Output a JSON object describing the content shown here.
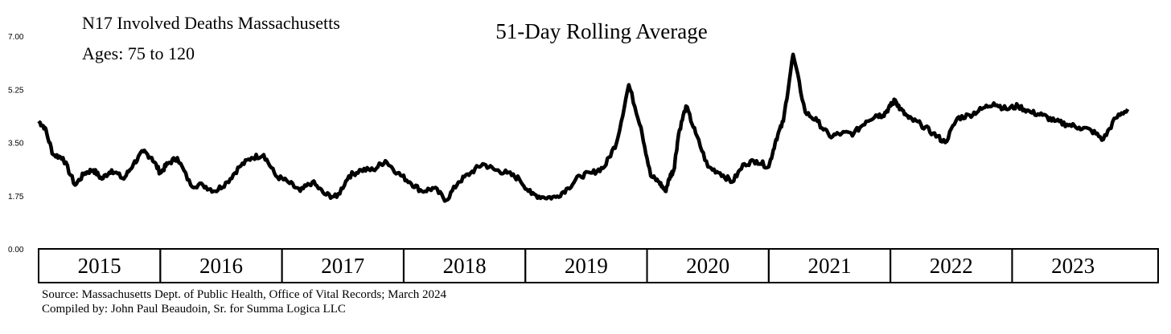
{
  "chart_data": {
    "type": "line",
    "title_lines": [
      "N17 Involved Deaths Massachusetts",
      "Ages:  75 to 120"
    ],
    "subtitle": "51-Day Rolling Average",
    "ylim": [
      0,
      7
    ],
    "yticks": [
      "0.00",
      "1.75",
      "3.50",
      "5.25",
      "7.00"
    ],
    "year_labels": [
      "2015",
      "2016",
      "2017",
      "2018",
      "2019",
      "2020",
      "2021",
      "2022",
      "2023"
    ],
    "grid": false,
    "series": [
      {
        "x": [
          2015.0,
          2015.05,
          2015.12,
          2015.2,
          2015.3,
          2015.38,
          2015.45,
          2015.52,
          2015.6,
          2015.7,
          2015.78,
          2015.86,
          2015.93,
          2016.0,
          2016.06,
          2016.14,
          2016.25,
          2016.35,
          2016.45,
          2016.55,
          2016.65,
          2016.75,
          2016.85,
          2016.95,
          2017.05,
          2017.15,
          2017.25,
          2017.35,
          2017.45,
          2017.55,
          2017.65,
          2017.75,
          2017.85,
          2017.95,
          2018.05,
          2018.15,
          2018.25,
          2018.35,
          2018.45,
          2018.55,
          2018.65,
          2018.75,
          2018.85,
          2018.95,
          2019.05,
          2019.15,
          2019.25,
          2019.35,
          2019.45,
          2019.55,
          2019.65,
          2019.75,
          2019.85,
          2019.95,
          2020.03,
          2020.1,
          2020.15,
          2020.19,
          2020.22,
          2020.26,
          2020.32,
          2020.4,
          2020.5,
          2020.6,
          2020.7,
          2020.8,
          2020.9,
          2021.0,
          2021.06,
          2021.12,
          2021.2,
          2021.3,
          2021.4,
          2021.5,
          2021.6,
          2021.7,
          2021.8,
          2021.88,
          2021.94,
          2022.0,
          2022.04,
          2022.08,
          2022.15,
          2022.25,
          2022.35,
          2022.45,
          2022.55,
          2022.65,
          2022.75,
          2022.85,
          2022.95,
          2023.05,
          2023.15,
          2023.25,
          2023.35,
          2023.45,
          2023.55,
          2023.65,
          2023.75,
          2023.85,
          2023.95
        ],
        "y": [
          4.2,
          4.0,
          3.1,
          3.0,
          2.1,
          2.5,
          2.6,
          2.3,
          2.6,
          2.3,
          2.8,
          3.2,
          3.0,
          2.5,
          2.8,
          3.0,
          2.1,
          2.1,
          1.9,
          2.2,
          2.7,
          3.0,
          3.1,
          2.4,
          2.2,
          1.9,
          2.2,
          1.8,
          1.7,
          2.4,
          2.6,
          2.6,
          2.9,
          2.5,
          2.2,
          1.9,
          2.0,
          1.6,
          2.2,
          2.5,
          2.8,
          2.6,
          2.5,
          2.3,
          1.8,
          1.7,
          1.7,
          2.0,
          2.4,
          2.5,
          2.7,
          3.5,
          5.4,
          4.0,
          2.4,
          2.2,
          1.9,
          2.4,
          2.6,
          3.8,
          4.7,
          3.8,
          2.7,
          2.5,
          2.2,
          2.8,
          2.9,
          2.7,
          3.6,
          4.2,
          6.4,
          4.5,
          4.2,
          3.7,
          3.8,
          3.8,
          4.2,
          4.4,
          4.4,
          4.7,
          4.9,
          4.6,
          4.3,
          4.1,
          3.8,
          3.5,
          4.3,
          4.4,
          4.6,
          4.8,
          4.6,
          4.7,
          4.5,
          4.4,
          4.2,
          4.1,
          4.0,
          3.9,
          3.6,
          4.3,
          4.6
        ]
      }
    ]
  },
  "footer": {
    "source": "Source:  Massachusetts Dept. of Public Health, Office of Vital Records; March 2024",
    "compiled": "Compiled by:  John Paul Beaudoin, Sr. for Summa Logica LLC"
  }
}
